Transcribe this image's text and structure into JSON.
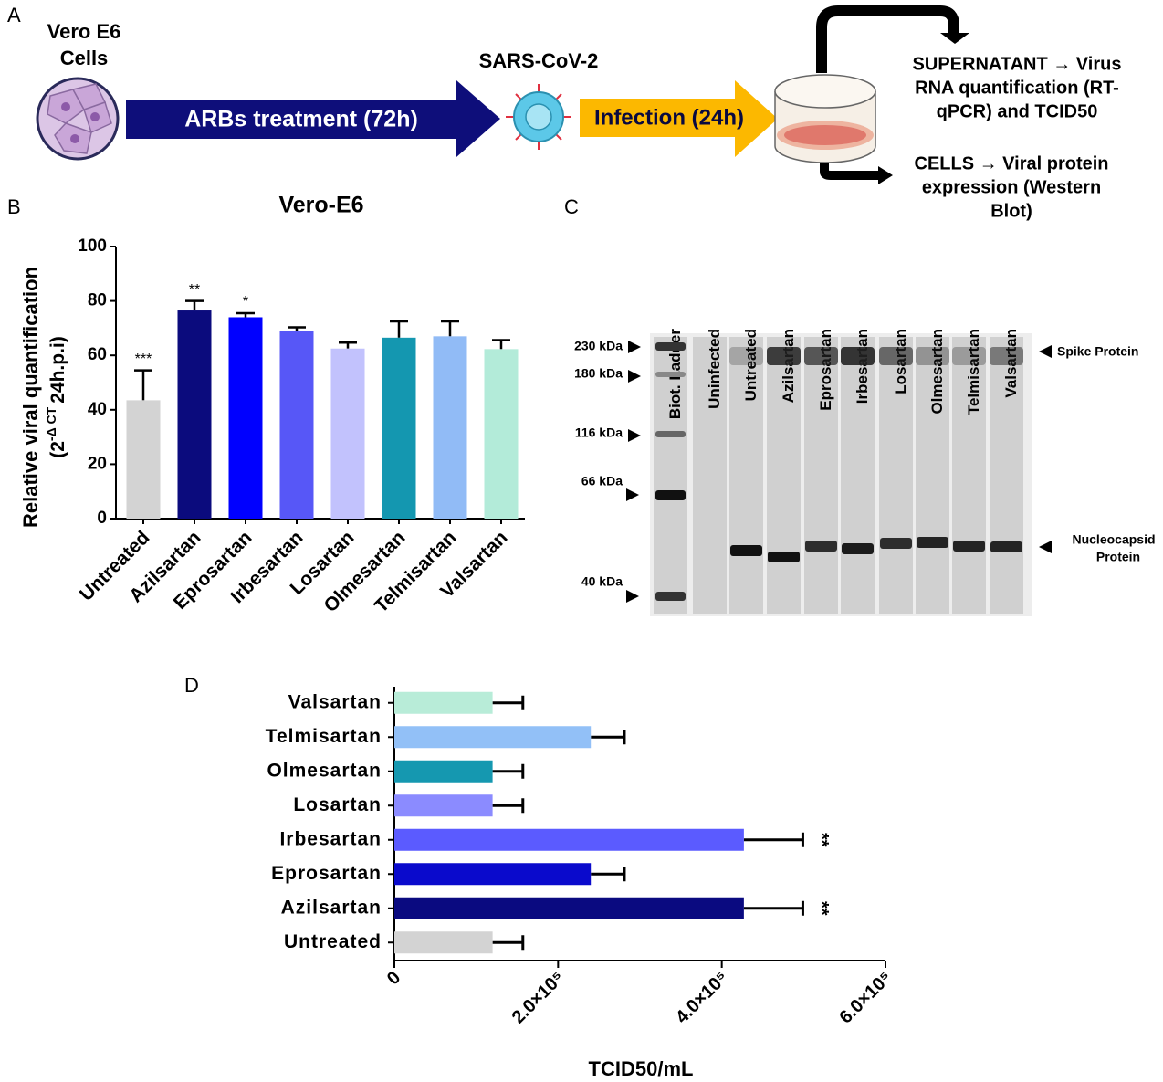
{
  "panel_labels": [
    "A",
    "B",
    "C",
    "D"
  ],
  "diagram": {
    "cell_label": [
      "Vero E6",
      "Cells"
    ],
    "virus_label": "SARS-CoV-2",
    "treatment": "ARBs treatment (72h)",
    "infection": "Infection (24h)",
    "supernatant": [
      "SUPERNATANT → Virus",
      "RNA quantification (RT-",
      "qPCR) and TCID50"
    ],
    "cells": [
      "CELLS → Viral protein",
      "expression (Western",
      "Blot)"
    ]
  },
  "blot": {
    "lanes": [
      "Biot. Ladder",
      "Uninfected",
      "Untreated",
      "Azilsartan",
      "Eprosartan",
      "Irbesartan",
      "Losartan",
      "Olmesartan",
      "Telmisartan",
      "Valsartan"
    ],
    "markers": [
      "230 kDa",
      "180 kDa",
      "116 kDa",
      "66 kDa",
      "40 kDa"
    ],
    "spike_label": "Spike Protein",
    "nucleocapsid_label": [
      "Nucleocapsid",
      "Protein"
    ]
  },
  "chart_data": [
    {
      "type": "bar",
      "title": "Vero-E6",
      "y_label": "Relative viral quantification",
      "y_label_formula": {
        "base": "(2",
        "superscript": "-Δ CT",
        "rest": "24h.p.i)"
      },
      "categories": [
        "Untreated",
        "Azilsartan",
        "Eprosartan",
        "Irbesartan",
        "Losartan",
        "Olmesartan",
        "Telmisartan",
        "Valsartan"
      ],
      "values": [
        43.5,
        76.5,
        74,
        68.8,
        62.5,
        66.5,
        67,
        62.3
      ],
      "errors": [
        11,
        3.5,
        1.5,
        1.5,
        2.2,
        6,
        5.5,
        3.3
      ],
      "colors": [
        "#d3d3d3",
        "#0b0b7d",
        "#0000ff",
        "#5757f7",
        "#c2c2fd",
        "#1497b0",
        "#91bbf6",
        "#b3ebd9"
      ],
      "annotations": [
        "***",
        "**",
        "*",
        null,
        null,
        null,
        null,
        null
      ],
      "ylim": [
        0,
        100
      ],
      "yticks": [
        0,
        20,
        40,
        60,
        80,
        100
      ]
    },
    {
      "type": "barh",
      "x_label": "TCID50/mL",
      "categories": [
        "Untreated",
        "Azilsartan",
        "Eprosartan",
        "Irbesartan",
        "Losartan",
        "Olmesartan",
        "Telmisartan",
        "Valsartan"
      ],
      "values": [
        120000,
        427000,
        240000,
        427000,
        120000,
        120000,
        240000,
        120000
      ],
      "errors": [
        37000,
        72000,
        41000,
        72000,
        37000,
        37000,
        41000,
        37000
      ],
      "colors": [
        "#d3d3d3",
        "#0a0a80",
        "#0a0acc",
        "#5b5bff",
        "#8b8bff",
        "#1598b0",
        "#92c0f7",
        "#b8ecd8"
      ],
      "annotations": [
        null,
        "**",
        null,
        "**",
        null,
        null,
        null,
        null
      ],
      "xlim": [
        0,
        600000
      ],
      "xticks": [
        0,
        {
          "value": 200000,
          "label": "2.0×10⁵"
        },
        {
          "value": 400000,
          "label": "4.0×10⁵"
        },
        {
          "value": 600000,
          "label": "6.0×10⁵"
        }
      ]
    }
  ]
}
